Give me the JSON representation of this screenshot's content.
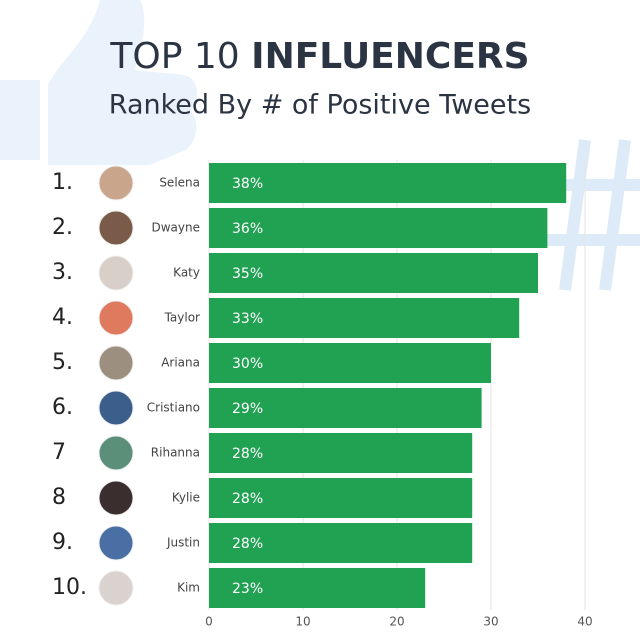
{
  "chart_data": {
    "type": "bar",
    "orientation": "horizontal",
    "title": [
      "TOP 10",
      "INFLUENCERS"
    ],
    "subtitle": "Ranked By # of Positive Tweets",
    "ranks": [
      "1.",
      "2.",
      "3.",
      "4.",
      "5.",
      "6.",
      "7",
      "8",
      "9.",
      "10."
    ],
    "categories": [
      "Selena",
      "Dwayne",
      "Katy",
      "Taylor",
      "Ariana",
      "Cristiano",
      "Rihanna",
      "Kylie",
      "Justin",
      "Kim"
    ],
    "values": [
      38,
      36,
      35,
      33,
      30,
      29,
      28,
      28,
      28,
      23
    ],
    "value_labels": [
      "38%",
      "36%",
      "35%",
      "33%",
      "30%",
      "29%",
      "28%",
      "28%",
      "28%",
      "23%"
    ],
    "color": "#21a152",
    "xlim": [
      0,
      40
    ],
    "xticks": [
      0,
      10,
      20,
      30,
      40
    ],
    "grid": true
  }
}
